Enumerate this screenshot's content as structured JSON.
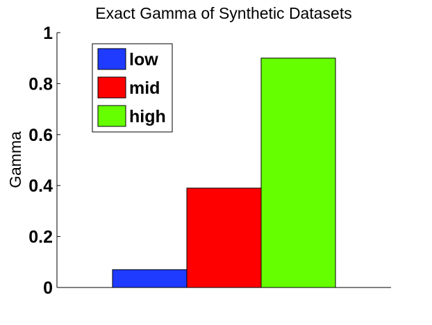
{
  "chart_data": {
    "type": "bar",
    "title": "Exact Gamma of Synthetic Datasets",
    "xlabel": "",
    "ylabel": "Gamma",
    "ylim": [
      0,
      1
    ],
    "yticks": [
      "0",
      "0.2",
      "0.4",
      "0.6",
      "0.8",
      "1"
    ],
    "categories": [
      ""
    ],
    "series": [
      {
        "name": "low",
        "values": [
          0.07
        ],
        "color": "#1f3bff"
      },
      {
        "name": "mid",
        "values": [
          0.39
        ],
        "color": "#ff0000"
      },
      {
        "name": "high",
        "values": [
          0.9
        ],
        "color": "#66ff00"
      }
    ],
    "legend_position": "top-left",
    "grid": false
  }
}
